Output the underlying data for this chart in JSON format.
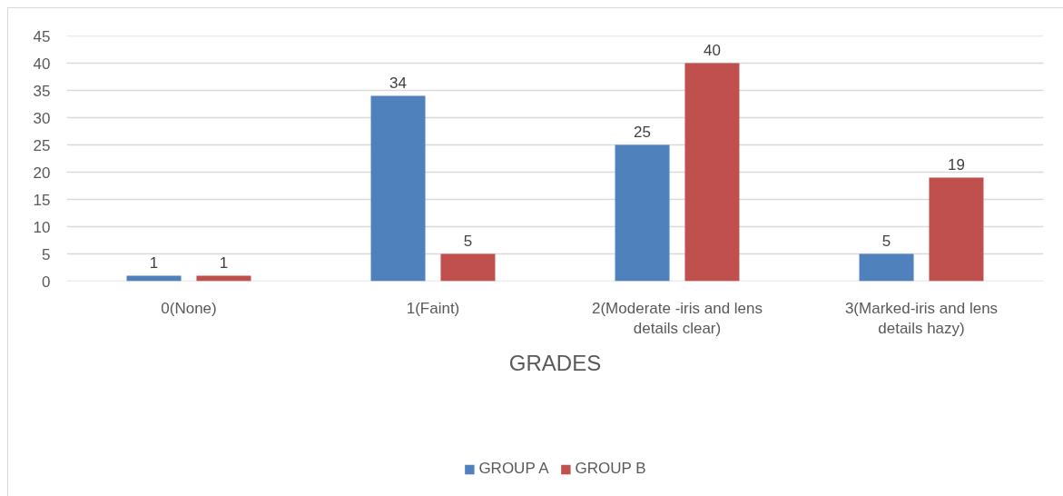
{
  "chart_data": {
    "type": "bar",
    "xlabel": "GRADES",
    "categories": [
      "0(None)",
      "1(Faint)",
      "2(Moderate -iris and lens details clear)",
      "3(Marked-iris and lens details hazy)"
    ],
    "series": [
      {
        "name": "GROUP A",
        "color": "#4f81bd",
        "values": [
          1,
          34,
          25,
          5
        ]
      },
      {
        "name": "GROUP B",
        "color": "#c0504d",
        "values": [
          1,
          5,
          40,
          19
        ]
      }
    ],
    "ylim": [
      0,
      45
    ],
    "yticks": [
      0,
      5,
      10,
      15,
      20,
      25,
      30,
      35,
      40,
      45
    ],
    "grid": "y",
    "legend": "bottom",
    "data_labels": true
  }
}
